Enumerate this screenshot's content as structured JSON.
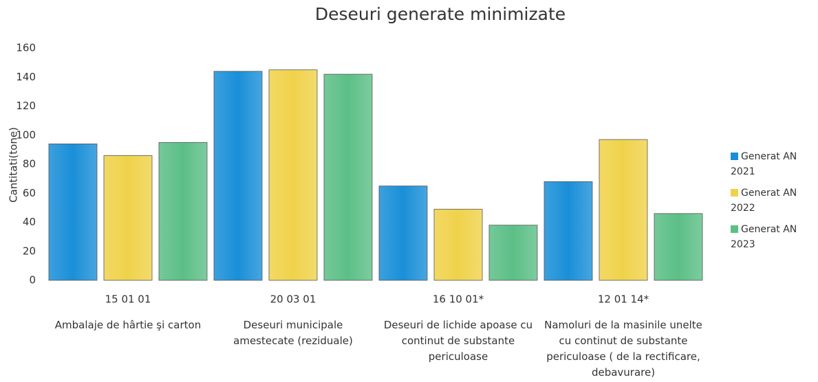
{
  "chart_data": {
    "type": "bar",
    "title": "Deseuri generate minimizate",
    "y_label": "Cantitati(tone)",
    "categories": [
      "15 01 01",
      "20 03 01",
      "16 10 01*",
      "12 01 14*"
    ],
    "category_descriptions": [
      "Ambalaje de hârtie şi carton",
      "Deseuri municipale amestecate (reziduale)",
      "Deseuri de lichide apoase cu continut de substante periculoase",
      "Namoluri de la masinile unelte cu continut de substante periculoase ( de la rectificare, debavurare)"
    ],
    "series": [
      {
        "name": "Generat AN 2021",
        "color": "#1a8fd8",
        "values": [
          94,
          144,
          65,
          68
        ]
      },
      {
        "name": "Generat AN 2022",
        "color": "#f0d24a",
        "values": [
          86,
          145,
          49,
          97
        ]
      },
      {
        "name": "Generat AN 2023",
        "color": "#5cbf86",
        "values": [
          95,
          142,
          38,
          46
        ]
      }
    ],
    "ylim": [
      0,
      160
    ],
    "yticks": [
      0,
      20,
      40,
      60,
      80,
      100,
      120,
      140,
      160
    ],
    "grid": false,
    "legend": "right"
  }
}
